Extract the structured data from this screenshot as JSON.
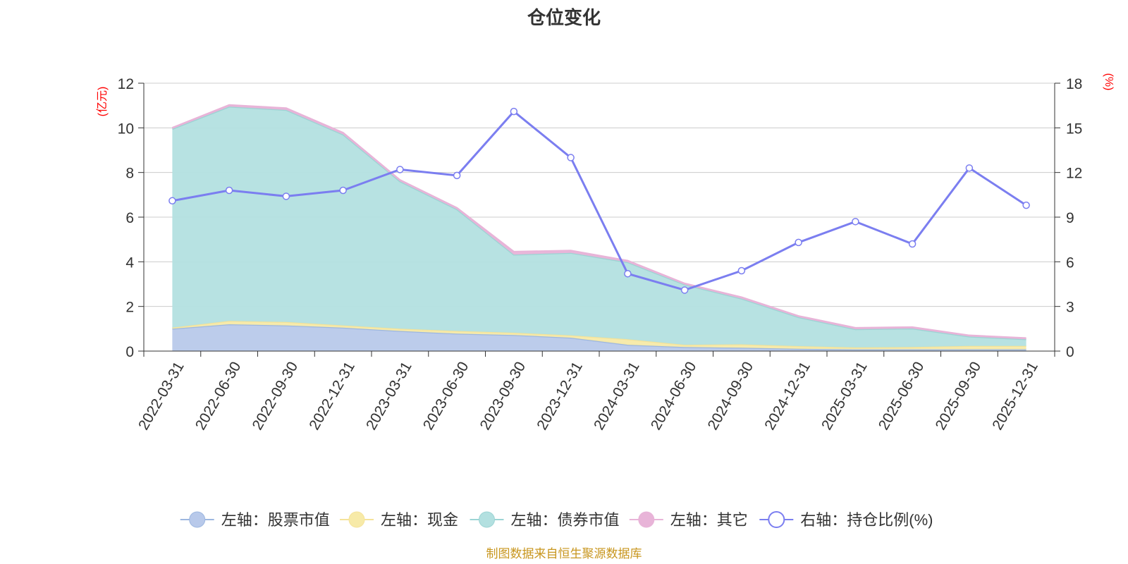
{
  "chart_data": {
    "type": "area",
    "title": "仓位变化",
    "left_unit": "(亿元)",
    "right_unit": "(%)",
    "categories": [
      "2022-03-31",
      "2022-06-30",
      "2022-09-30",
      "2022-12-31",
      "2023-03-31",
      "2023-06-30",
      "2023-09-30",
      "2023-12-31",
      "2024-03-31",
      "2024-06-30",
      "2024-09-30",
      "2024-12-31",
      "2025-03-31",
      "2025-06-30",
      "2025-09-30",
      "2025-12-31"
    ],
    "left_axis": {
      "min": 0,
      "max": 12,
      "ticks": [
        0,
        2,
        4,
        6,
        8,
        10,
        12
      ]
    },
    "right_axis": {
      "min": 0,
      "max": 18,
      "ticks": [
        0,
        3,
        6,
        9,
        12,
        15,
        18
      ]
    },
    "grid": true,
    "legend_position": "bottom",
    "stacked_series": [
      {
        "name": "左轴：股票市值",
        "color": "#9db7e0",
        "fill": "#b8c9ea",
        "values": [
          1.0,
          1.2,
          1.15,
          1.05,
          0.9,
          0.78,
          0.72,
          0.6,
          0.28,
          0.18,
          0.15,
          0.1,
          0.08,
          0.08,
          0.08,
          0.08
        ]
      },
      {
        "name": "左轴：现金",
        "color": "#f5e39a",
        "fill": "#f7eaa8",
        "values": [
          0.05,
          0.15,
          0.15,
          0.1,
          0.1,
          0.12,
          0.1,
          0.1,
          0.25,
          0.1,
          0.15,
          0.12,
          0.08,
          0.1,
          0.15,
          0.15
        ]
      },
      {
        "name": "左轴：债券市值",
        "color": "#9cd4d4",
        "fill": "#b3e0e0",
        "values": [
          8.9,
          9.6,
          9.5,
          8.55,
          6.6,
          5.45,
          3.5,
          3.7,
          3.45,
          2.7,
          2.05,
          1.3,
          0.82,
          0.83,
          0.42,
          0.3
        ]
      },
      {
        "name": "左轴：其它",
        "color": "#e8b4d8",
        "fill": "#e8b4d8",
        "values": [
          0.05,
          0.07,
          0.08,
          0.08,
          0.06,
          0.06,
          0.13,
          0.1,
          0.07,
          0.05,
          0.06,
          0.05,
          0.06,
          0.06,
          0.05,
          0.05
        ]
      }
    ],
    "line_series": {
      "name": "右轴：持仓比例(%)",
      "color": "#7b7ef0",
      "values": [
        10.1,
        10.8,
        10.4,
        10.8,
        12.2,
        11.8,
        16.1,
        13.0,
        5.2,
        4.1,
        5.4,
        7.3,
        8.7,
        7.2,
        12.3,
        9.8
      ]
    }
  },
  "footer": "制图数据来自恒生聚源数据库"
}
